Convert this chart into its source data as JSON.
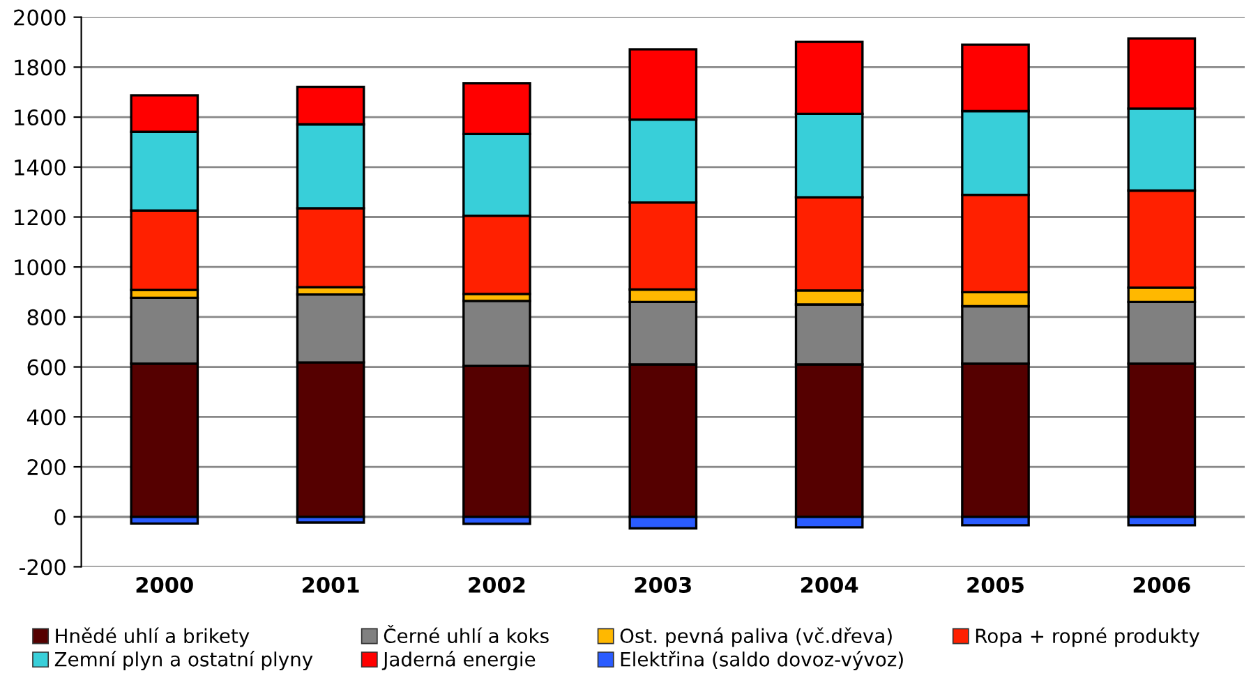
{
  "chart_data": {
    "type": "bar",
    "stacked": true,
    "categories": [
      "2000",
      "2001",
      "2002",
      "2003",
      "2004",
      "2005",
      "2006"
    ],
    "series": [
      {
        "name": "Hnědé uhlí a brikety",
        "color": "#550000",
        "values": [
          613,
          618,
          604,
          610,
          610,
          613,
          613
        ]
      },
      {
        "name": "Černé uhlí a koks",
        "color": "#808080",
        "values": [
          264,
          272,
          260,
          250,
          240,
          230,
          247
        ]
      },
      {
        "name": "Ost. pevná paliva (vč.dřeva)",
        "color": "#ffb800",
        "values": [
          31,
          29,
          28,
          50,
          56,
          56,
          57
        ]
      },
      {
        "name": "Ropa + ropné produkty",
        "color": "#ff2000",
        "values": [
          318,
          316,
          313,
          348,
          373,
          390,
          389
        ]
      },
      {
        "name": "Zemní plyn a ostatní plyny",
        "color": "#38cfd9",
        "values": [
          315,
          336,
          327,
          332,
          334,
          335,
          328
        ]
      },
      {
        "name": "Jaderná energie",
        "color": "#ff0000",
        "values": [
          146,
          150,
          203,
          281,
          288,
          266,
          281
        ]
      },
      {
        "name": "Elektřina (saldo dovoz-vývoz)",
        "color": "#2a5cff",
        "values": [
          -27,
          -23,
          -28,
          -46,
          -42,
          -34,
          -34
        ]
      }
    ],
    "ylim": [
      -200,
      2000
    ],
    "yticks": [
      -200,
      0,
      200,
      400,
      600,
      800,
      1000,
      1200,
      1400,
      1600,
      1800,
      2000
    ],
    "grid": "y",
    "legend": "bottom"
  }
}
